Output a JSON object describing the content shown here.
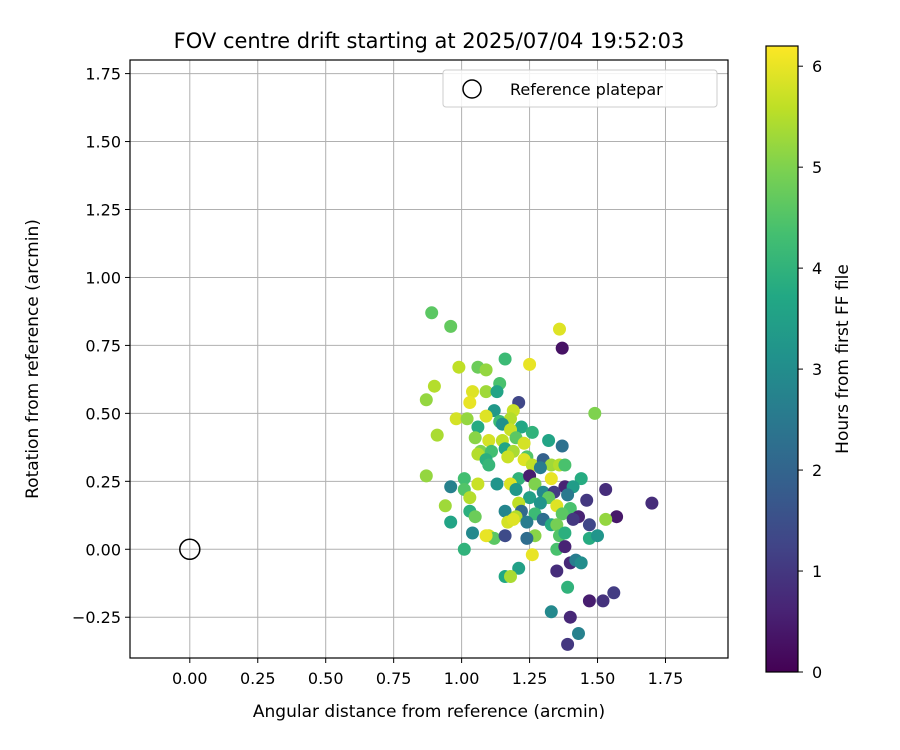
{
  "chart_data": {
    "type": "scatter",
    "title": "FOV centre drift starting at 2025/07/04 19:52:03",
    "xlabel": "Angular distance from reference (arcmin)",
    "ylabel": "Rotation from reference (arcmin)",
    "xlim": [
      -0.22,
      1.98
    ],
    "ylim": [
      -0.4,
      1.8
    ],
    "xticks": [
      "0.00",
      "0.25",
      "0.50",
      "0.75",
      "1.00",
      "1.25",
      "1.50",
      "1.75"
    ],
    "yticks": [
      "−0.25",
      "0.00",
      "0.25",
      "0.50",
      "0.75",
      "1.00",
      "1.25",
      "1.50",
      "1.75"
    ],
    "grid": true,
    "legend": {
      "placement": "top-right",
      "entries": [
        "Reference platepar"
      ]
    },
    "colorbar": {
      "label": "Hours from first FF file",
      "colormap": "viridis",
      "range": [
        0,
        6.2
      ],
      "ticks": [
        "0",
        "1",
        "2",
        "3",
        "4",
        "5",
        "6"
      ]
    },
    "reference_point": {
      "x": 0.0,
      "y": 0.0,
      "marker": "open-circle"
    },
    "points": [
      [
        0.89,
        0.87,
        4.6
      ],
      [
        0.96,
        0.82,
        4.7
      ],
      [
        1.36,
        0.81,
        5.9
      ],
      [
        1.37,
        0.74,
        0.3
      ],
      [
        1.16,
        0.7,
        4.2
      ],
      [
        1.06,
        0.67,
        4.8
      ],
      [
        1.09,
        0.66,
        5.2
      ],
      [
        0.99,
        0.67,
        5.6
      ],
      [
        1.25,
        0.68,
        6.0
      ],
      [
        0.9,
        0.6,
        5.5
      ],
      [
        1.14,
        0.61,
        4.4
      ],
      [
        1.04,
        0.58,
        5.9
      ],
      [
        1.09,
        0.58,
        5.3
      ],
      [
        1.13,
        0.58,
        3.6
      ],
      [
        0.87,
        0.55,
        5.2
      ],
      [
        1.03,
        0.54,
        6.0
      ],
      [
        1.21,
        0.54,
        1.3
      ],
      [
        1.12,
        0.51,
        3.3
      ],
      [
        1.19,
        0.51,
        5.7
      ],
      [
        1.49,
        0.5,
        5.0
      ],
      [
        0.98,
        0.48,
        5.8
      ],
      [
        1.02,
        0.48,
        5.2
      ],
      [
        1.09,
        0.49,
        5.9
      ],
      [
        1.14,
        0.47,
        4.2
      ],
      [
        1.18,
        0.48,
        5.5
      ],
      [
        1.15,
        0.46,
        3.1
      ],
      [
        1.06,
        0.45,
        3.8
      ],
      [
        1.22,
        0.45,
        3.7
      ],
      [
        1.18,
        0.44,
        5.7
      ],
      [
        1.26,
        0.43,
        4.0
      ],
      [
        0.91,
        0.42,
        5.4
      ],
      [
        1.05,
        0.41,
        5.1
      ],
      [
        1.1,
        0.4,
        5.8
      ],
      [
        1.15,
        0.4,
        5.6
      ],
      [
        1.2,
        0.41,
        4.6
      ],
      [
        1.23,
        0.39,
        5.8
      ],
      [
        1.32,
        0.4,
        3.6
      ],
      [
        1.37,
        0.38,
        2.3
      ],
      [
        1.07,
        0.36,
        5.0
      ],
      [
        1.11,
        0.36,
        4.3
      ],
      [
        1.16,
        0.37,
        3.6
      ],
      [
        1.19,
        0.36,
        5.4
      ],
      [
        1.24,
        0.34,
        4.5
      ],
      [
        1.06,
        0.35,
        5.5
      ],
      [
        1.09,
        0.33,
        3.9
      ],
      [
        1.17,
        0.34,
        5.7
      ],
      [
        1.23,
        0.33,
        5.9
      ],
      [
        1.26,
        0.31,
        5.6
      ],
      [
        1.3,
        0.33,
        1.9
      ],
      [
        1.1,
        0.31,
        4.1
      ],
      [
        1.33,
        0.31,
        5.3
      ],
      [
        1.36,
        0.31,
        5.5
      ],
      [
        1.38,
        0.31,
        4.4
      ],
      [
        1.29,
        0.3,
        2.6
      ],
      [
        0.87,
        0.27,
        5.2
      ],
      [
        1.01,
        0.26,
        4.3
      ],
      [
        1.21,
        0.26,
        4.0
      ],
      [
        1.25,
        0.27,
        0.5
      ],
      [
        1.33,
        0.26,
        6.0
      ],
      [
        1.44,
        0.26,
        3.8
      ],
      [
        1.06,
        0.24,
        5.7
      ],
      [
        1.13,
        0.24,
        3.2
      ],
      [
        1.18,
        0.24,
        5.9
      ],
      [
        1.27,
        0.24,
        5.0
      ],
      [
        1.38,
        0.23,
        0.6
      ],
      [
        1.41,
        0.23,
        3.4
      ],
      [
        1.53,
        0.22,
        0.8
      ],
      [
        0.96,
        0.23,
        2.7
      ],
      [
        1.01,
        0.22,
        4.5
      ],
      [
        1.2,
        0.22,
        3.3
      ],
      [
        1.3,
        0.21,
        2.9
      ],
      [
        1.34,
        0.21,
        1.1
      ],
      [
        1.39,
        0.2,
        2.5
      ],
      [
        1.03,
        0.19,
        5.5
      ],
      [
        1.25,
        0.19,
        3.5
      ],
      [
        1.32,
        0.19,
        4.7
      ],
      [
        1.46,
        0.18,
        1.0
      ],
      [
        1.7,
        0.17,
        0.8
      ],
      [
        0.94,
        0.16,
        5.3
      ],
      [
        1.21,
        0.17,
        5.6
      ],
      [
        1.29,
        0.17,
        3.2
      ],
      [
        1.35,
        0.16,
        5.9
      ],
      [
        1.4,
        0.15,
        4.4
      ],
      [
        1.03,
        0.14,
        3.9
      ],
      [
        1.16,
        0.14,
        2.8
      ],
      [
        1.22,
        0.14,
        2.1
      ],
      [
        1.27,
        0.13,
        4.2
      ],
      [
        1.37,
        0.13,
        4.6
      ],
      [
        1.43,
        0.12,
        0.6
      ],
      [
        1.57,
        0.12,
        0.4
      ],
      [
        1.05,
        0.12,
        4.8
      ],
      [
        1.17,
        0.1,
        5.8
      ],
      [
        1.2,
        0.12,
        5.5
      ],
      [
        1.24,
        0.1,
        2.6
      ],
      [
        1.3,
        0.11,
        2.2
      ],
      [
        1.41,
        0.11,
        1.0
      ],
      [
        0.96,
        0.1,
        3.6
      ],
      [
        1.19,
        0.11,
        5.9
      ],
      [
        1.33,
        0.09,
        3.8
      ],
      [
        1.35,
        0.09,
        4.9
      ],
      [
        1.47,
        0.09,
        1.3
      ],
      [
        1.53,
        0.11,
        5.2
      ],
      [
        1.04,
        0.06,
        2.9
      ],
      [
        1.1,
        0.05,
        5.7
      ],
      [
        1.12,
        0.04,
        4.6
      ],
      [
        1.16,
        0.05,
        1.4
      ],
      [
        1.27,
        0.05,
        5.1
      ],
      [
        1.36,
        0.05,
        4.5
      ],
      [
        1.38,
        0.06,
        3.9
      ],
      [
        1.47,
        0.04,
        3.8
      ],
      [
        1.5,
        0.05,
        3.2
      ],
      [
        1.09,
        0.05,
        6.0
      ],
      [
        1.24,
        0.04,
        2.2
      ],
      [
        1.01,
        0.0,
        4.0
      ],
      [
        1.35,
        0.0,
        4.4
      ],
      [
        1.38,
        0.01,
        0.6
      ],
      [
        1.26,
        -0.02,
        6.0
      ],
      [
        1.4,
        -0.05,
        0.7
      ],
      [
        1.42,
        -0.04,
        2.6
      ],
      [
        1.44,
        -0.05,
        3.0
      ],
      [
        1.35,
        -0.08,
        0.8
      ],
      [
        1.21,
        -0.07,
        3.5
      ],
      [
        1.16,
        -0.1,
        3.7
      ],
      [
        1.18,
        -0.1,
        5.4
      ],
      [
        1.39,
        -0.14,
        4.0
      ],
      [
        1.56,
        -0.16,
        1.1
      ],
      [
        1.47,
        -0.19,
        0.5
      ],
      [
        1.52,
        -0.19,
        0.9
      ],
      [
        1.33,
        -0.23,
        2.9
      ],
      [
        1.4,
        -0.25,
        0.7
      ],
      [
        1.43,
        -0.31,
        2.7
      ],
      [
        1.39,
        -0.35,
        1.0
      ]
    ]
  }
}
